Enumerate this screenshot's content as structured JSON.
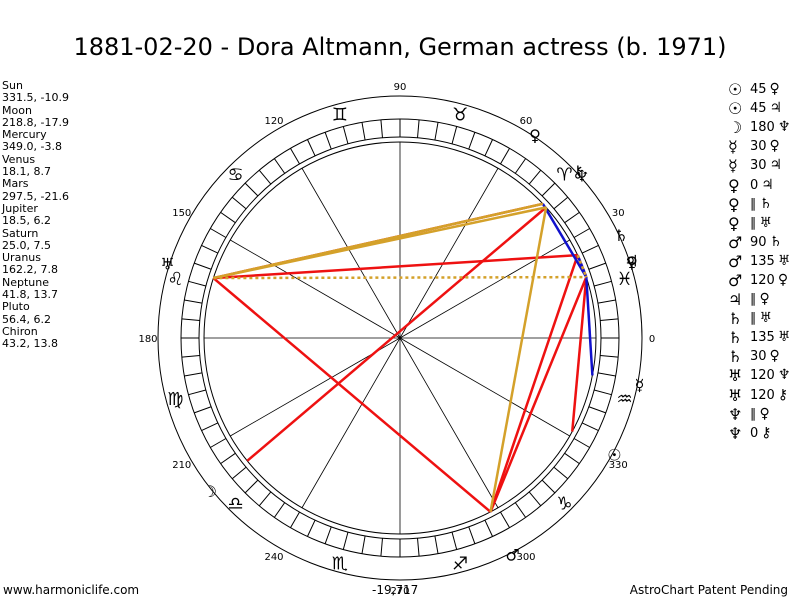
{
  "title": "1881-02-20 - Dora Altmann, German actress (b. 1971)",
  "planets": [
    {
      "name": "Sun",
      "value": "331.5, -10.9"
    },
    {
      "name": "Moon",
      "value": "218.8, -17.9"
    },
    {
      "name": "Mercury",
      "value": "349.0, -3.8"
    },
    {
      "name": "Venus",
      "value": "18.1, 8.7"
    },
    {
      "name": "Mars",
      "value": "297.5, -21.6"
    },
    {
      "name": "Jupiter",
      "value": "18.5, 6.2"
    },
    {
      "name": "Saturn",
      "value": "25.0, 7.5"
    },
    {
      "name": "Uranus",
      "value": "162.2, 7.8"
    },
    {
      "name": "Neptune",
      "value": "41.8, 13.7"
    },
    {
      "name": "Pluto",
      "value": "56.4, 6.2"
    },
    {
      "name": "Chiron",
      "value": "43.2, 13.8"
    }
  ],
  "aspects": [
    {
      "p1": "☉",
      "aspect": "45",
      "p2": "♀"
    },
    {
      "p1": "☉",
      "aspect": "45",
      "p2": "♃"
    },
    {
      "p1": "☽",
      "aspect": "180",
      "p2": "♆"
    },
    {
      "p1": "☿",
      "aspect": "30",
      "p2": "♀"
    },
    {
      "p1": "☿",
      "aspect": "30",
      "p2": "♃"
    },
    {
      "p1": "♀",
      "aspect": "0",
      "p2": "♃"
    },
    {
      "p1": "♀",
      "aspect": "∥",
      "p2": "♄"
    },
    {
      "p1": "♀",
      "aspect": "∥",
      "p2": "♅"
    },
    {
      "p1": "♂",
      "aspect": "90",
      "p2": "♄"
    },
    {
      "p1": "♂",
      "aspect": "135",
      "p2": "♅"
    },
    {
      "p1": "♂",
      "aspect": "120",
      "p2": "♀"
    },
    {
      "p1": "♃",
      "aspect": "∥",
      "p2": "♀"
    },
    {
      "p1": "♄",
      "aspect": "∥",
      "p2": "♅"
    },
    {
      "p1": "♄",
      "aspect": "135",
      "p2": "♅"
    },
    {
      "p1": "♄",
      "aspect": "30",
      "p2": "♀"
    },
    {
      "p1": "♅",
      "aspect": "120",
      "p2": "♆"
    },
    {
      "p1": "♅",
      "aspect": "120",
      "p2": "⚷"
    },
    {
      "p1": "♆",
      "aspect": "∥",
      "p2": "♀"
    },
    {
      "p1": "♆",
      "aspect": "0",
      "p2": "⚷"
    }
  ],
  "wheel": {
    "degree_labels": [
      "0",
      "30",
      "60",
      "90",
      "120",
      "150",
      "180",
      "210",
      "240",
      "270",
      "300",
      "330"
    ],
    "degree_values": [
      0,
      30,
      60,
      90,
      120,
      150,
      180,
      210,
      240,
      270,
      300,
      330
    ],
    "signs": [
      "♓",
      "♈",
      "♉",
      "♊",
      "♋",
      "♌",
      "♍",
      "♎",
      "♏",
      "♐",
      "♑",
      "♒"
    ],
    "bodies": [
      {
        "glyph": "☉",
        "lon": 331.5
      },
      {
        "glyph": "☽",
        "lon": 218.8
      },
      {
        "glyph": "☿",
        "lon": 349.0
      },
      {
        "glyph": "♀",
        "lon": 18.1
      },
      {
        "glyph": "♂",
        "lon": 297.5
      },
      {
        "glyph": "♃",
        "lon": 18.5
      },
      {
        "glyph": "♄",
        "lon": 25.0
      },
      {
        "glyph": "♅",
        "lon": 162.2
      },
      {
        "glyph": "♆",
        "lon": 41.8
      },
      {
        "glyph": "♀",
        "lon": 56.4
      },
      {
        "glyph": "⚷",
        "lon": 43.2
      }
    ],
    "colors": {
      "red": "#ee1111",
      "blue": "#1111cc",
      "gold": "#d4a12a"
    }
  },
  "footer": {
    "left": "www.harmoniclife.com",
    "center": "-19,717",
    "right": "AstroChart Patent Pending"
  }
}
